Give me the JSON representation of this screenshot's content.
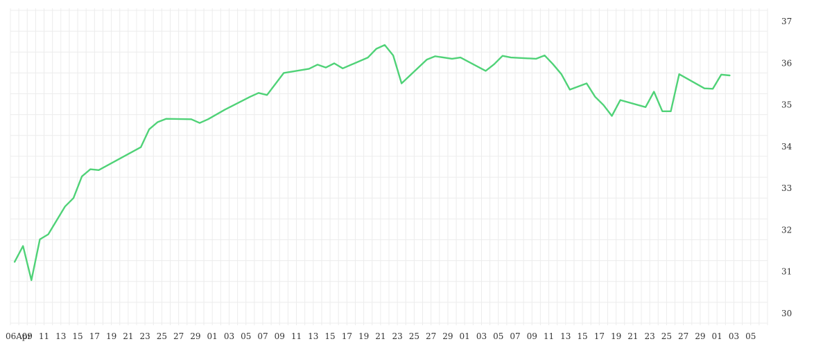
{
  "chart_data": {
    "type": "line",
    "title": "",
    "xlabel": "",
    "ylabel": "",
    "ylim": [
      29.7,
      37.3
    ],
    "y_ticks": [
      30,
      31,
      32,
      33,
      34,
      35,
      36,
      37
    ],
    "y_axis_side": "right",
    "grid": true,
    "legend": "none",
    "x_ticks": [
      "06Apr",
      "09",
      "11",
      "13",
      "15",
      "17",
      "19",
      "21",
      "23",
      "25",
      "27",
      "29",
      "01",
      "03",
      "05",
      "07",
      "09",
      "11",
      "13",
      "15",
      "17",
      "19",
      "21",
      "23",
      "25",
      "27",
      "29",
      "01",
      "03",
      "05",
      "07",
      "09",
      "11",
      "13",
      "15",
      "17",
      "19",
      "21",
      "23",
      "25",
      "27",
      "29",
      "01",
      "03",
      "05"
    ],
    "x_index_range": [
      0,
      90
    ],
    "series": [
      {
        "color": "#4fd277",
        "points": [
          [
            0.5,
            31.22
          ],
          [
            1.5,
            31.6
          ],
          [
            2.5,
            30.78
          ],
          [
            3.5,
            31.76
          ],
          [
            4.5,
            31.88
          ],
          [
            6.5,
            32.55
          ],
          [
            7.5,
            32.75
          ],
          [
            8.5,
            33.27
          ],
          [
            9.5,
            33.44
          ],
          [
            10.5,
            33.42
          ],
          [
            15.5,
            33.97
          ],
          [
            16.5,
            34.4
          ],
          [
            17.5,
            34.57
          ],
          [
            18.5,
            34.65
          ],
          [
            21.5,
            34.64
          ],
          [
            22.5,
            34.55
          ],
          [
            23.5,
            34.64
          ],
          [
            25.5,
            34.87
          ],
          [
            28.5,
            35.18
          ],
          [
            29.5,
            35.27
          ],
          [
            30.5,
            35.22
          ],
          [
            32.5,
            35.75
          ],
          [
            35.5,
            35.85
          ],
          [
            36.5,
            35.95
          ],
          [
            37.5,
            35.88
          ],
          [
            38.5,
            35.98
          ],
          [
            39.5,
            35.86
          ],
          [
            42.5,
            36.12
          ],
          [
            43.5,
            36.33
          ],
          [
            44.5,
            36.42
          ],
          [
            45.5,
            36.17
          ],
          [
            46.5,
            35.5
          ],
          [
            49.5,
            36.07
          ],
          [
            50.5,
            36.15
          ],
          [
            52.5,
            36.09
          ],
          [
            53.5,
            36.12
          ],
          [
            56.5,
            35.8
          ],
          [
            57.5,
            35.96
          ],
          [
            58.5,
            36.16
          ],
          [
            59.5,
            36.12
          ],
          [
            62.5,
            36.09
          ],
          [
            63.5,
            36.17
          ],
          [
            64.5,
            35.96
          ],
          [
            65.5,
            35.72
          ],
          [
            66.5,
            35.35
          ],
          [
            68.5,
            35.5
          ],
          [
            69.5,
            35.18
          ],
          [
            70.5,
            34.98
          ],
          [
            71.5,
            34.72
          ],
          [
            72.5,
            35.1
          ],
          [
            75.5,
            34.93
          ],
          [
            76.5,
            35.3
          ],
          [
            77.5,
            34.83
          ],
          [
            78.5,
            34.83
          ],
          [
            79.5,
            35.72
          ],
          [
            82.5,
            35.38
          ],
          [
            83.5,
            35.37
          ],
          [
            84.5,
            35.71
          ],
          [
            85.5,
            35.69
          ]
        ]
      }
    ]
  }
}
